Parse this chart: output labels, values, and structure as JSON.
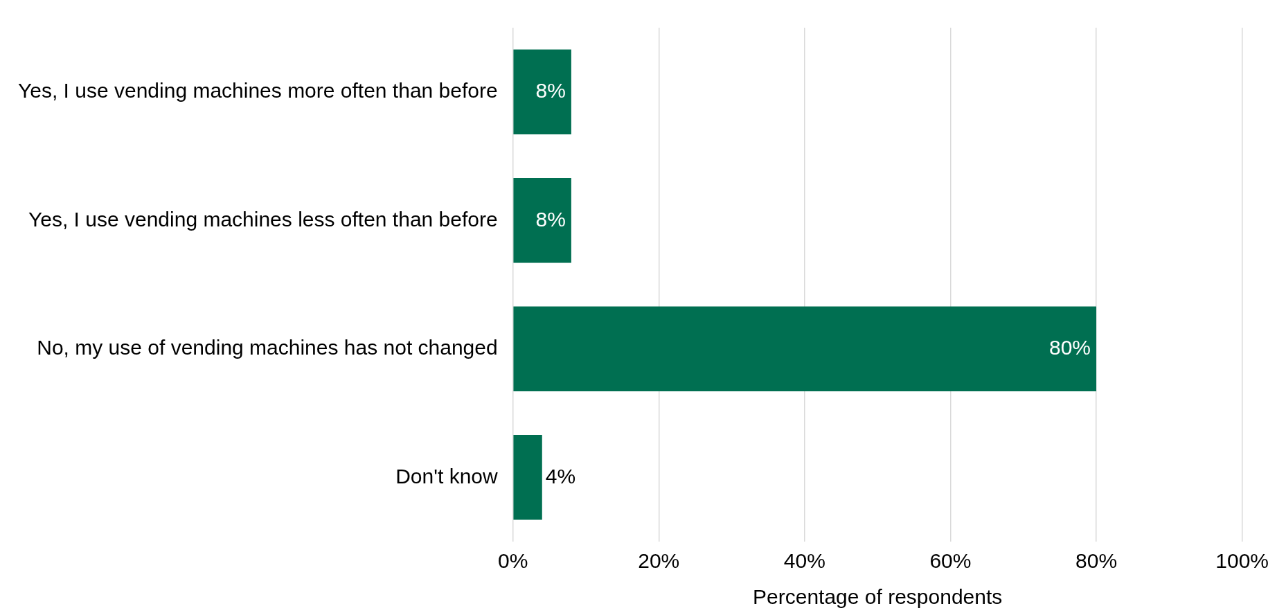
{
  "chart_data": {
    "type": "bar",
    "orientation": "horizontal",
    "xlabel": "Percentage of respondents",
    "categories": [
      "Yes, I use vending machines more often than before",
      "Yes, I use vending machines less often than before",
      "No, my use of vending machines has not changed",
      "Don't know"
    ],
    "values": [
      8,
      8,
      80,
      4
    ],
    "value_labels": [
      "8%",
      "8%",
      "80%",
      "4%"
    ],
    "color": "#006f51",
    "xlim": [
      0,
      100
    ],
    "xticks": [
      {
        "value": 0,
        "label": "0%"
      },
      {
        "value": 20,
        "label": "20%"
      },
      {
        "value": 40,
        "label": "40%"
      },
      {
        "value": 60,
        "label": "60%"
      },
      {
        "value": 80,
        "label": "80%"
      },
      {
        "value": 100,
        "label": "100%"
      }
    ],
    "grid": "x",
    "legend": false
  }
}
